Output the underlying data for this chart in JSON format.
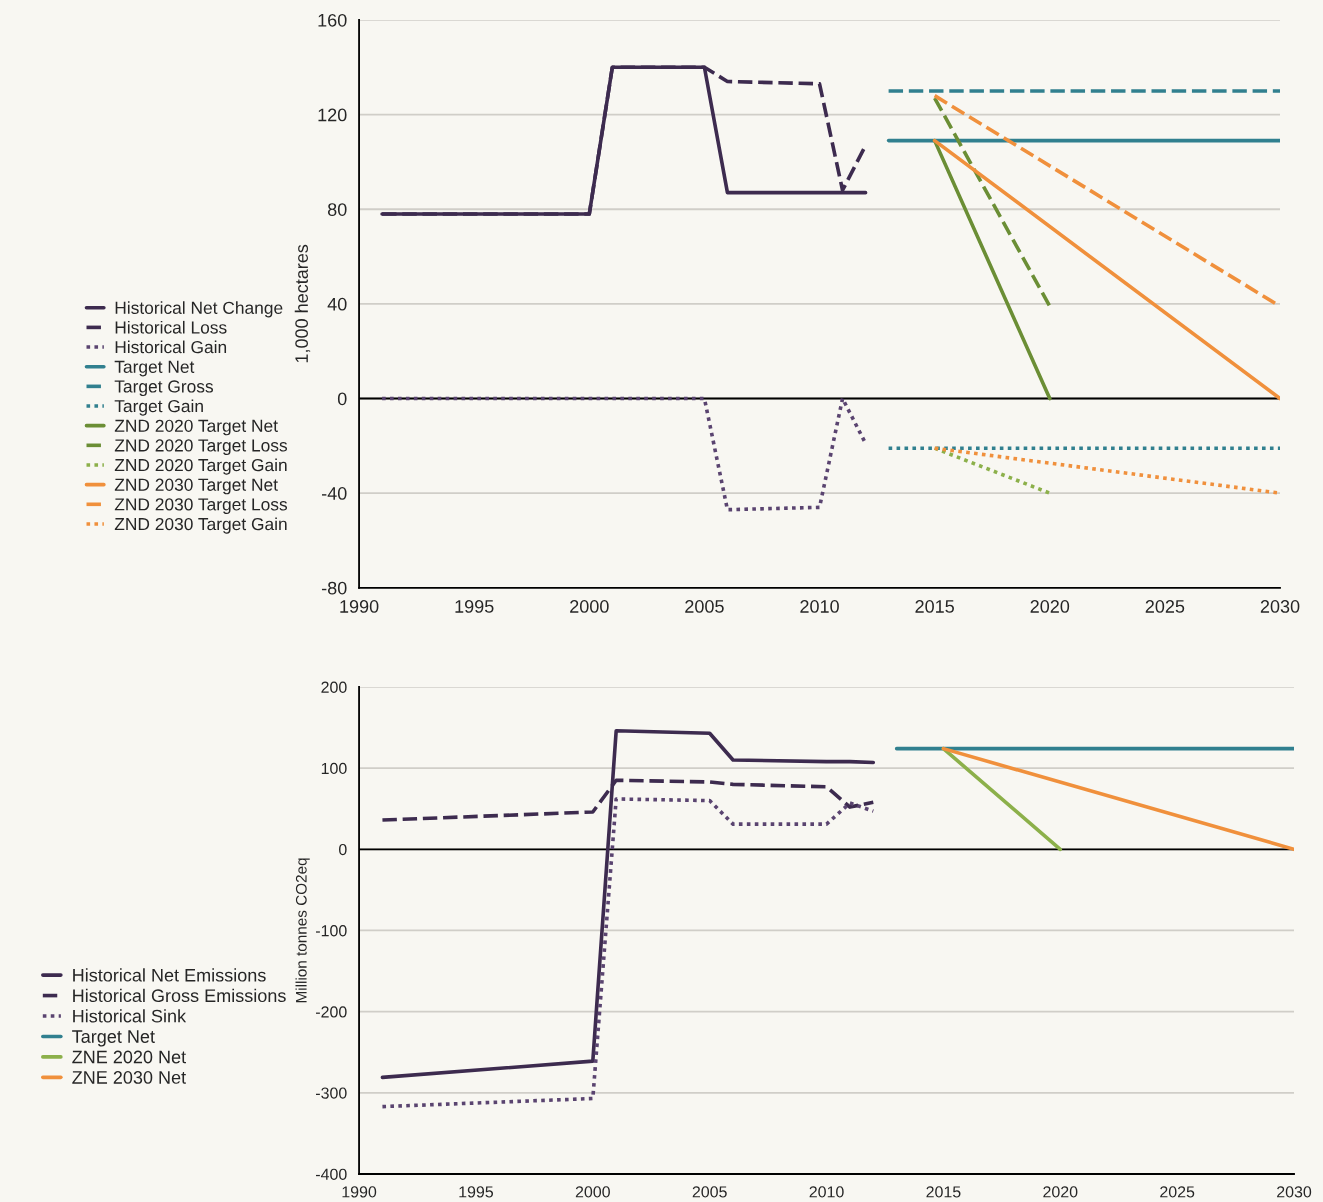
{
  "chart_data": [
    {
      "type": "line",
      "ylabel": "1,000 hectares",
      "xlim": [
        1990,
        2030
      ],
      "xticks": [
        1990,
        1995,
        2000,
        2005,
        2010,
        2015,
        2020,
        2025,
        2030
      ],
      "ylim": [
        -80,
        160
      ],
      "yticks": [
        -80,
        -40,
        0,
        40,
        80,
        120,
        160
      ],
      "grid": "y",
      "legend": "left",
      "ref_lines": [
        {
          "axis": "y",
          "value": 0,
          "color": "#000000"
        }
      ],
      "series": [
        {
          "name": "Historical Net Change",
          "color": "#3d2b4f",
          "line_style": "solid",
          "x": [
            1991,
            2000,
            2001,
            2005,
            2006,
            2010,
            2011,
            2012
          ],
          "values": [
            78,
            78,
            140,
            140,
            87,
            87,
            87,
            87
          ]
        },
        {
          "name": "Historical Loss",
          "color": "#3d2b4f",
          "line_style": "dashed",
          "x": [
            1991,
            2000,
            2001,
            2005,
            2006,
            2010,
            2011,
            2012
          ],
          "values": [
            78,
            78,
            140,
            140,
            134,
            133,
            88,
            107
          ]
        },
        {
          "name": "Historical Gain",
          "color": "#5a4470",
          "line_style": "dotted",
          "x": [
            1991,
            2000,
            2001,
            2005,
            2006,
            2010,
            2011,
            2012
          ],
          "values": [
            0,
            0,
            0,
            0,
            -47,
            -46,
            0,
            -19
          ]
        },
        {
          "name": "Target Net",
          "color": "#31808f",
          "line_style": "solid",
          "x": [
            2013,
            2030
          ],
          "values": [
            109,
            109
          ]
        },
        {
          "name": "Target Gross",
          "color": "#31808f",
          "line_style": "dashed",
          "x": [
            2013,
            2030
          ],
          "values": [
            130,
            130
          ]
        },
        {
          "name": "Target Gain",
          "color": "#31808f",
          "line_style": "dotted",
          "x": [
            2013,
            2030
          ],
          "values": [
            -21,
            -21
          ]
        },
        {
          "name": "ZND 2020 Target Net",
          "color": "#6b8e35",
          "line_style": "solid",
          "x": [
            2015,
            2020
          ],
          "values": [
            109,
            0
          ]
        },
        {
          "name": "ZND 2020 Target Loss",
          "color": "#6b8e35",
          "line_style": "dashed",
          "x": [
            2015,
            2020
          ],
          "values": [
            127,
            39
          ]
        },
        {
          "name": "ZND 2020 Target Gain",
          "color": "#8cb04a",
          "line_style": "dotted",
          "x": [
            2015,
            2020
          ],
          "values": [
            -21,
            -40
          ]
        },
        {
          "name": "ZND 2030 Target Net",
          "color": "#f0903c",
          "line_style": "solid",
          "x": [
            2015,
            2030
          ],
          "values": [
            109,
            0
          ]
        },
        {
          "name": "ZND 2030 Target Loss",
          "color": "#f0903c",
          "line_style": "dashed",
          "x": [
            2015,
            2030
          ],
          "values": [
            128,
            39
          ]
        },
        {
          "name": "ZND 2030 Target Gain",
          "color": "#f0903c",
          "line_style": "dotted",
          "x": [
            2015,
            2030
          ],
          "values": [
            -21,
            -40
          ]
        }
      ]
    },
    {
      "type": "line",
      "ylabel": "Million tonnes CO2eq",
      "xlim": [
        1990,
        2030
      ],
      "xticks": [
        1990,
        1995,
        2000,
        2005,
        2010,
        2015,
        2020,
        2025,
        2030
      ],
      "ylim": [
        -400,
        200
      ],
      "yticks": [
        -400,
        -300,
        -200,
        -100,
        0,
        100,
        200
      ],
      "grid": "y",
      "legend": "left",
      "ref_lines": [
        {
          "axis": "y",
          "value": 0,
          "color": "#000000"
        }
      ],
      "series": [
        {
          "name": "Historical Net Emissions",
          "color": "#3d2b4f",
          "line_style": "solid",
          "x": [
            1991,
            2000,
            2001,
            2005,
            2006,
            2010,
            2011,
            2012
          ],
          "values": [
            -281,
            -261,
            146,
            143,
            110,
            108,
            108,
            107
          ]
        },
        {
          "name": "Historical Gross Emissions",
          "color": "#3d2b4f",
          "line_style": "dashed",
          "x": [
            1991,
            2000,
            2001,
            2005,
            2006,
            2010,
            2011,
            2012
          ],
          "values": [
            36,
            46,
            85,
            83,
            80,
            77,
            52,
            58
          ]
        },
        {
          "name": "Historical Sink",
          "color": "#5a4470",
          "line_style": "dotted",
          "x": [
            1991,
            2000,
            2001,
            2005,
            2006,
            2010,
            2011,
            2012
          ],
          "values": [
            -317,
            -307,
            62,
            60,
            31,
            31,
            57,
            47
          ]
        },
        {
          "name": "Target Net",
          "color": "#31808f",
          "line_style": "solid",
          "x": [
            2013,
            2030
          ],
          "values": [
            124,
            124
          ]
        },
        {
          "name": "ZNE 2020 Net",
          "color": "#8cb04a",
          "line_style": "solid",
          "x": [
            2015,
            2020
          ],
          "values": [
            124,
            0
          ]
        },
        {
          "name": "ZNE 2030 Net",
          "color": "#f0903c",
          "line_style": "solid",
          "x": [
            2015,
            2030
          ],
          "values": [
            124,
            0
          ]
        }
      ]
    }
  ]
}
